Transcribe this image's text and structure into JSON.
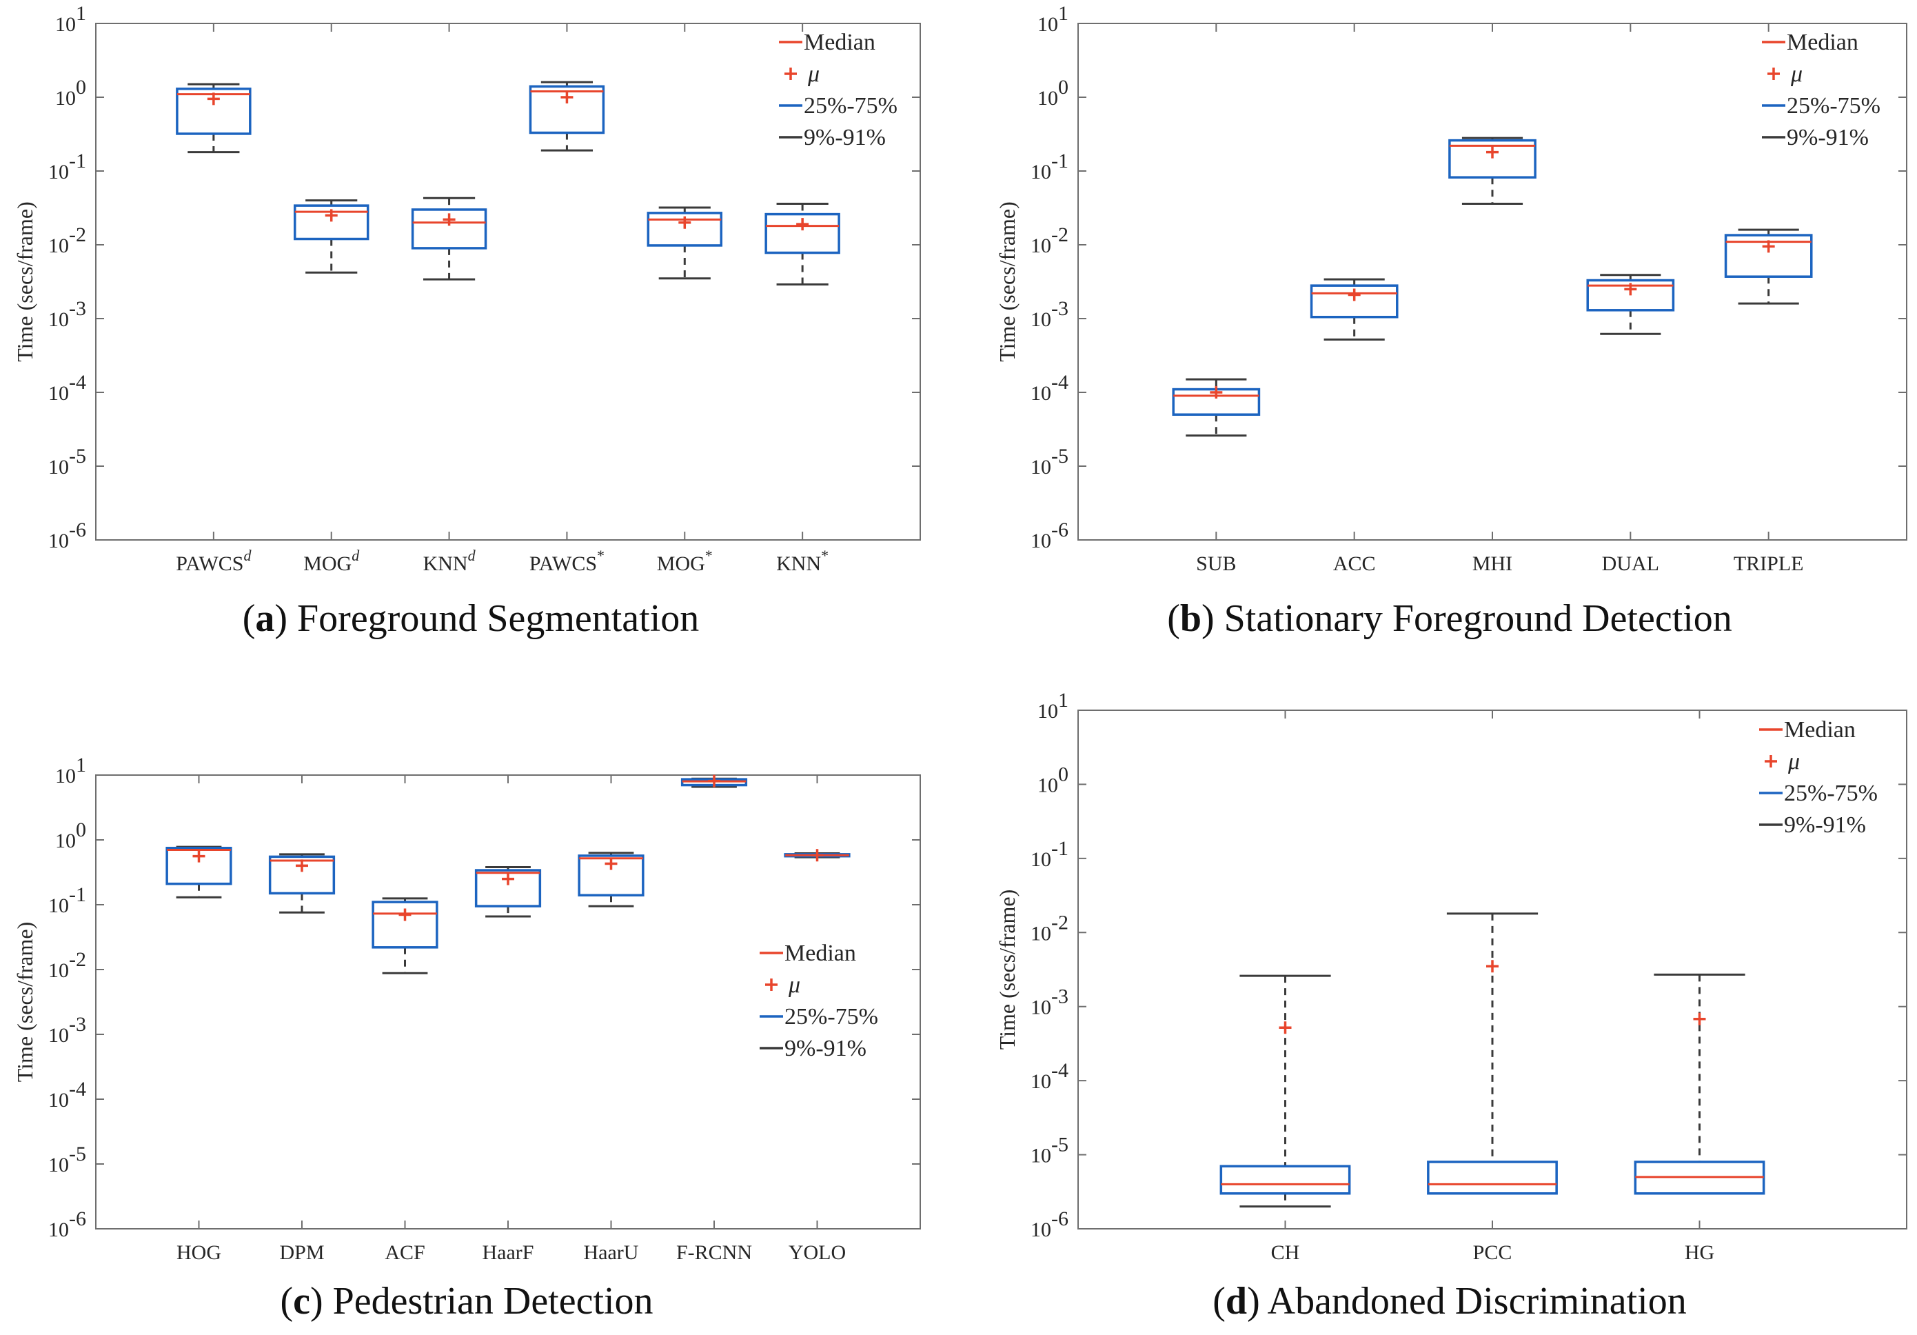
{
  "colors": {
    "median": "#e8452c",
    "mean": "#e8452c",
    "box": "#1c64c0",
    "whisker": "#3a3a3a",
    "axis": "#6e6e6e"
  },
  "legend_labels": {
    "median": "Median",
    "mean": "μ",
    "box": "25%-75%",
    "whisker": "9%-91%"
  },
  "chart_data": [
    {
      "type": "boxplot",
      "panel": "a",
      "caption_letter": "(a)",
      "caption_text": " Foreground Segmentation",
      "title": "Foreground Segmentation",
      "ylabel": "Time (secs/frame)",
      "yscale": "log",
      "ylim": [
        1e-06,
        10
      ],
      "legend_position": "top-right",
      "categories": [
        {
          "base": "PAWCS",
          "sup": "d"
        },
        {
          "base": "MOG",
          "sup": "d"
        },
        {
          "base": "KNN",
          "sup": "d"
        },
        {
          "base": "PAWCS",
          "sup": "*"
        },
        {
          "base": "MOG",
          "sup": "*"
        },
        {
          "base": "KNN",
          "sup": "*"
        }
      ],
      "boxes": [
        {
          "w_low": 0.18,
          "q1": 0.32,
          "median": 1.1,
          "q3": 1.3,
          "w_high": 1.5,
          "mean": 0.95
        },
        {
          "w_low": 0.0042,
          "q1": 0.012,
          "median": 0.028,
          "q3": 0.034,
          "w_high": 0.04,
          "mean": 0.025
        },
        {
          "w_low": 0.0034,
          "q1": 0.009,
          "median": 0.02,
          "q3": 0.03,
          "w_high": 0.043,
          "mean": 0.022
        },
        {
          "w_low": 0.19,
          "q1": 0.33,
          "median": 1.2,
          "q3": 1.4,
          "w_high": 1.6,
          "mean": 1.0
        },
        {
          "w_low": 0.0035,
          "q1": 0.0098,
          "median": 0.022,
          "q3": 0.027,
          "w_high": 0.032,
          "mean": 0.02
        },
        {
          "w_low": 0.0029,
          "q1": 0.0078,
          "median": 0.018,
          "q3": 0.026,
          "w_high": 0.036,
          "mean": 0.019
        }
      ]
    },
    {
      "type": "boxplot",
      "panel": "b",
      "caption_letter": "(b)",
      "caption_text": " Stationary Foreground Detection",
      "title": "Stationary Foreground Detection",
      "ylabel": "Time (secs/frame)",
      "yscale": "log",
      "ylim": [
        1e-06,
        10
      ],
      "legend_position": "top-right",
      "categories": [
        {
          "base": "SUB"
        },
        {
          "base": "ACC"
        },
        {
          "base": "MHI"
        },
        {
          "base": "DUAL"
        },
        {
          "base": "TRIPLE"
        }
      ],
      "boxes": [
        {
          "w_low": 2.6e-05,
          "q1": 5e-05,
          "median": 9e-05,
          "q3": 0.00011,
          "w_high": 0.00015,
          "mean": 0.0001
        },
        {
          "w_low": 0.00052,
          "q1": 0.00105,
          "median": 0.0022,
          "q3": 0.0028,
          "w_high": 0.0034,
          "mean": 0.0021
        },
        {
          "w_low": 0.036,
          "q1": 0.082,
          "median": 0.22,
          "q3": 0.26,
          "w_high": 0.28,
          "mean": 0.18
        },
        {
          "w_low": 0.00062,
          "q1": 0.0013,
          "median": 0.0028,
          "q3": 0.0033,
          "w_high": 0.0039,
          "mean": 0.0025
        },
        {
          "w_low": 0.0016,
          "q1": 0.0037,
          "median": 0.011,
          "q3": 0.0135,
          "w_high": 0.016,
          "mean": 0.0095
        }
      ]
    },
    {
      "type": "boxplot",
      "panel": "c",
      "caption_letter": "(c)",
      "caption_text": " Pedestrian Detection",
      "title": "Pedestrian Detection",
      "ylabel": "Time (secs/frame)",
      "yscale": "log",
      "ylim": [
        1e-06,
        10
      ],
      "legend_position": "middle-right",
      "categories": [
        {
          "base": "HOG"
        },
        {
          "base": "DPM"
        },
        {
          "base": "ACF"
        },
        {
          "base": "HaarF"
        },
        {
          "base": "HaarU"
        },
        {
          "base": "F-RCNN"
        },
        {
          "base": "YOLO"
        }
      ],
      "boxes": [
        {
          "w_low": 0.13,
          "q1": 0.21,
          "median": 0.7,
          "q3": 0.75,
          "w_high": 0.78,
          "mean": 0.56
        },
        {
          "w_low": 0.076,
          "q1": 0.15,
          "median": 0.48,
          "q3": 0.55,
          "w_high": 0.6,
          "mean": 0.4
        },
        {
          "w_low": 0.0088,
          "q1": 0.022,
          "median": 0.073,
          "q3": 0.11,
          "w_high": 0.125,
          "mean": 0.07
        },
        {
          "w_low": 0.066,
          "q1": 0.095,
          "median": 0.31,
          "q3": 0.34,
          "w_high": 0.38,
          "mean": 0.25
        },
        {
          "w_low": 0.095,
          "q1": 0.14,
          "median": 0.52,
          "q3": 0.57,
          "w_high": 0.63,
          "mean": 0.43
        },
        {
          "w_low": 6.6,
          "q1": 7.0,
          "median": 8.0,
          "q3": 8.6,
          "w_high": 8.8,
          "mean": 8.1
        },
        {
          "w_low": 0.54,
          "q1": 0.56,
          "median": 0.58,
          "q3": 0.6,
          "w_high": 0.62,
          "mean": 0.58
        }
      ]
    },
    {
      "type": "boxplot",
      "panel": "d",
      "caption_letter": "(d)",
      "caption_text": " Abandoned Discrimination",
      "title": "Abandoned Discrimination",
      "ylabel": "Time (secs/frame)",
      "yscale": "log",
      "ylim": [
        1e-06,
        10
      ],
      "legend_position": "top-right",
      "categories": [
        {
          "base": "CH"
        },
        {
          "base": "PCC"
        },
        {
          "base": "HG"
        }
      ],
      "boxes": [
        {
          "w_low": 2e-06,
          "q1": 3e-06,
          "median": 4e-06,
          "q3": 7e-06,
          "w_high": 0.0026,
          "mean": 0.00052
        },
        {
          "w_low": 3e-06,
          "q1": 3e-06,
          "median": 4e-06,
          "q3": 8e-06,
          "w_high": 0.018,
          "mean": 0.0035
        },
        {
          "w_low": 3e-06,
          "q1": 3e-06,
          "median": 5e-06,
          "q3": 8e-06,
          "w_high": 0.0027,
          "mean": 0.00068
        }
      ]
    }
  ]
}
